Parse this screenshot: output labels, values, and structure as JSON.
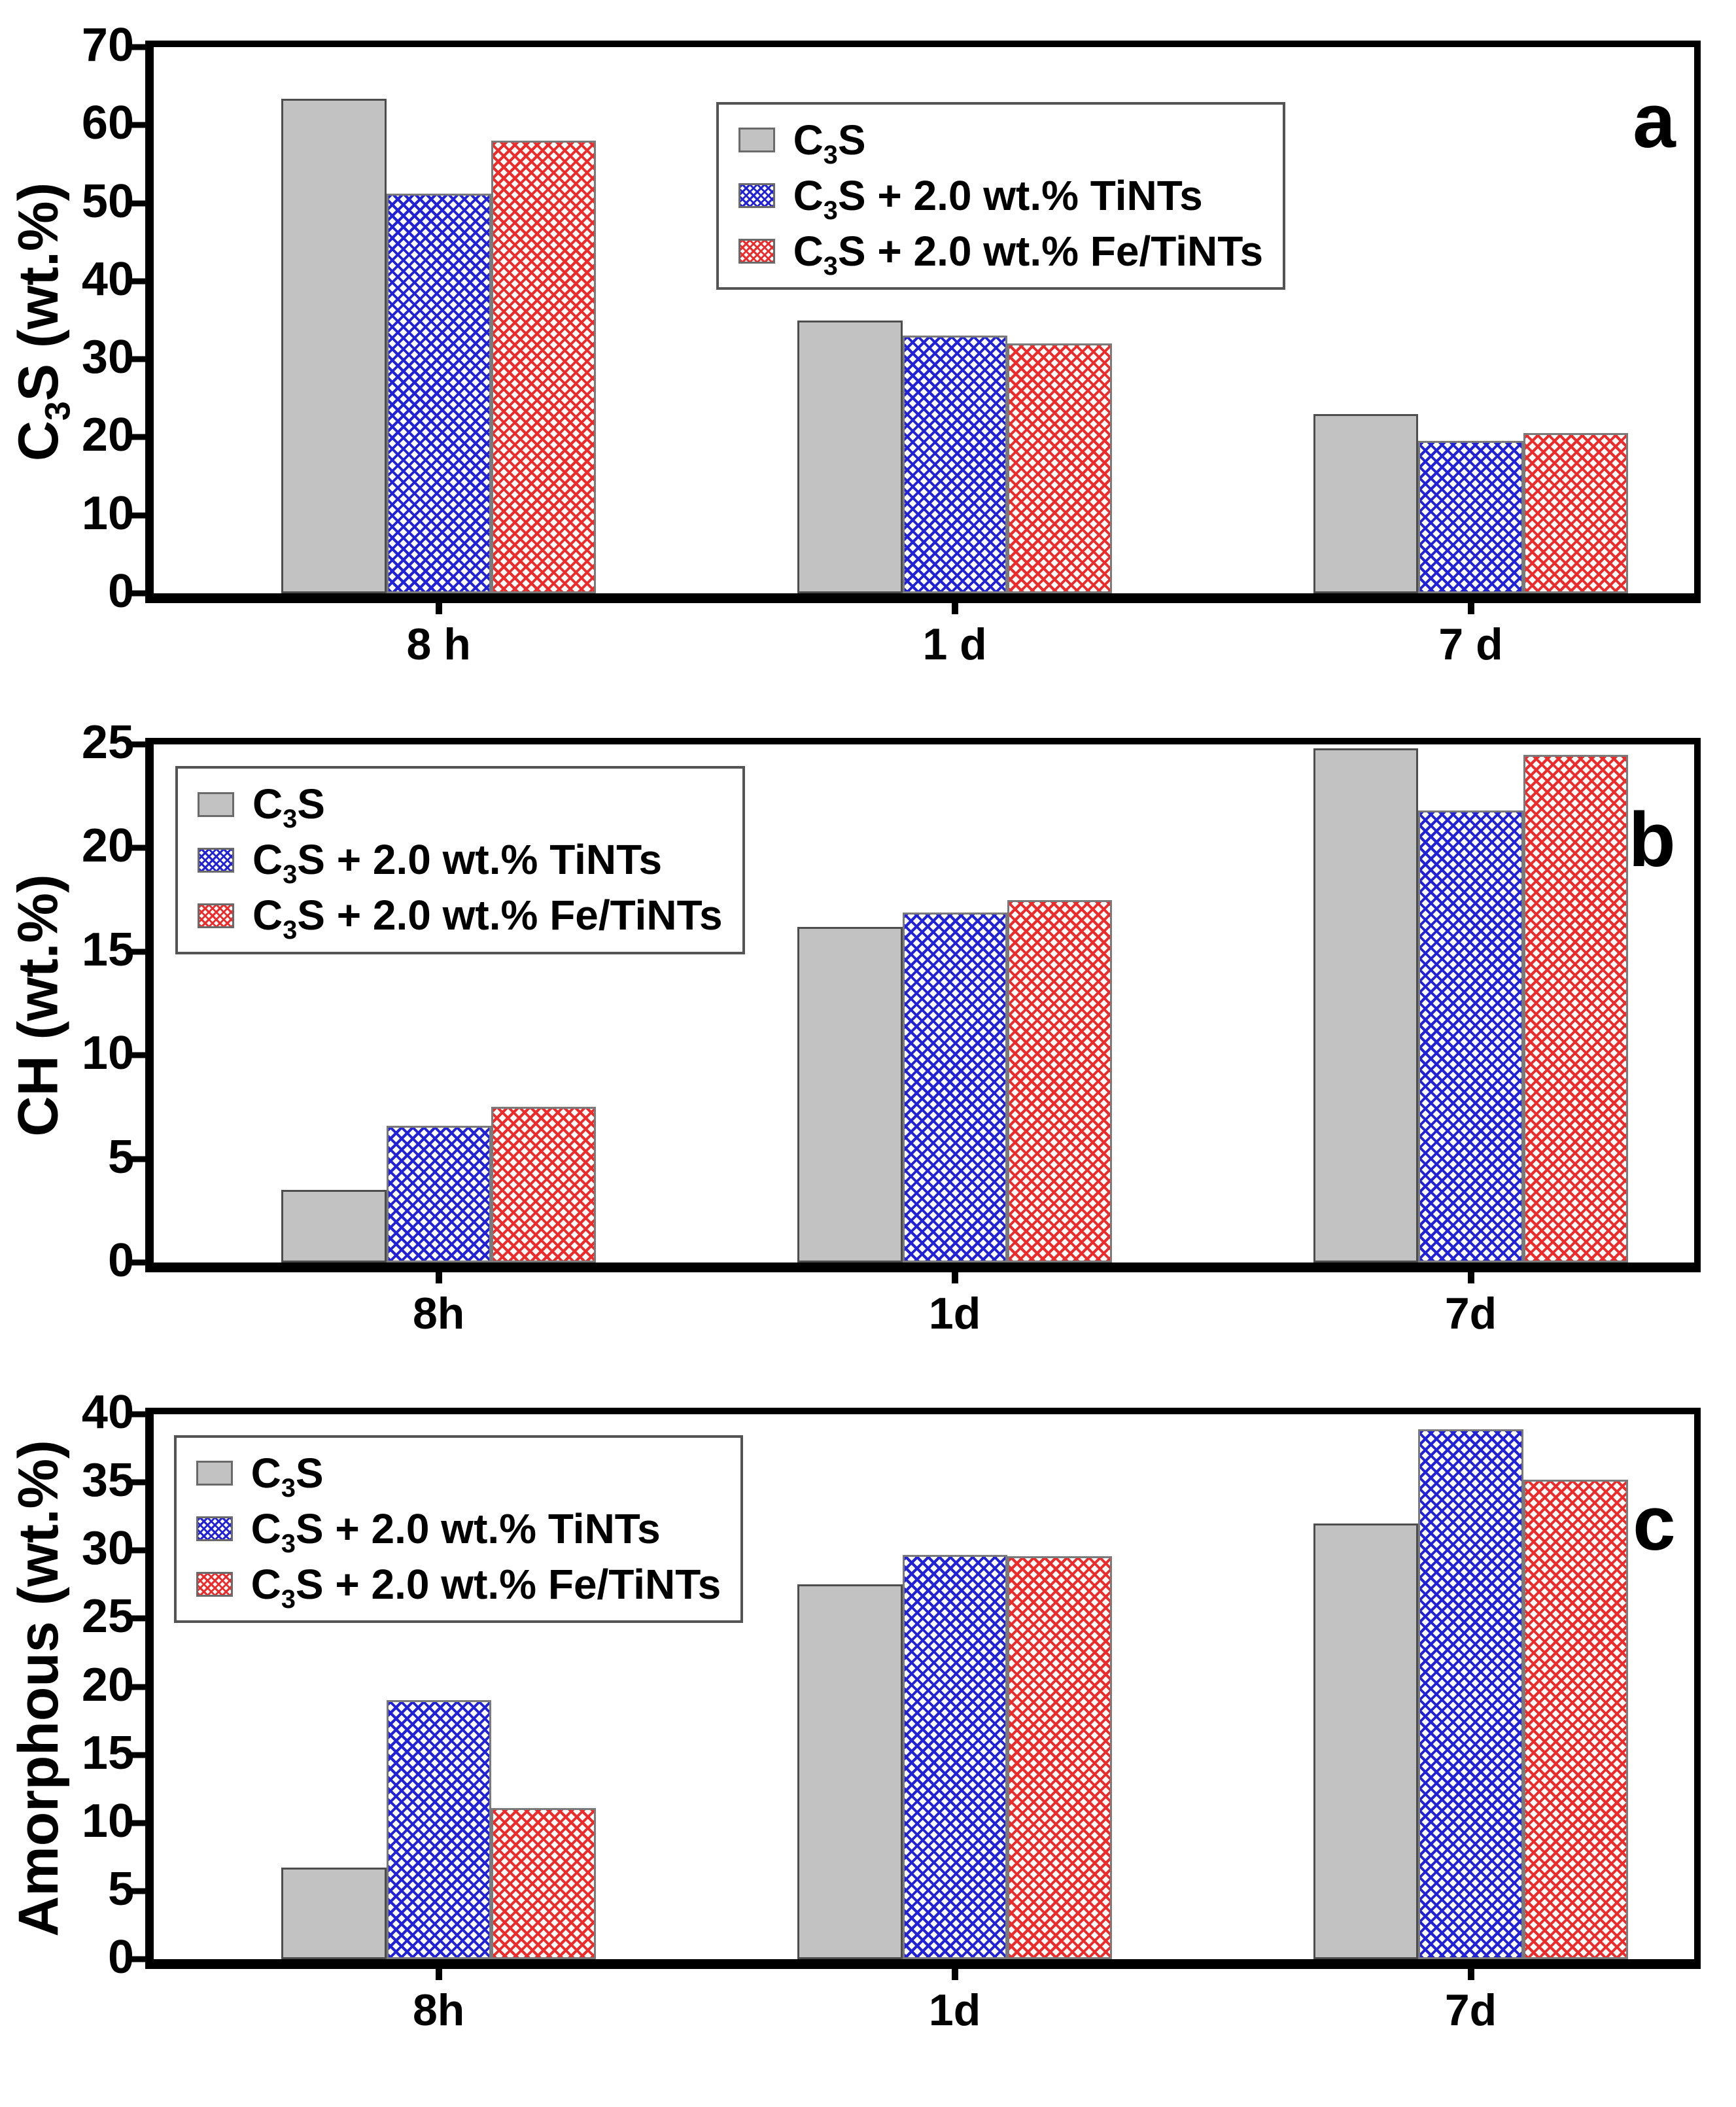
{
  "figure": {
    "background": "#ffffff",
    "panel_letters": [
      "a",
      "b",
      "c"
    ]
  },
  "colors": {
    "gray_fill": "#c2c2c2",
    "gray_edge": "#4d4d4d",
    "blue_hatch": "#2121d8",
    "red_hatch": "#ee2b2b",
    "frame": "#000000",
    "legend_border": "#545454"
  },
  "chart_data": [
    {
      "type": "bar",
      "panel_label": "a",
      "ylabel": "C3S (wt.%)",
      "xlabel": "",
      "ylim": [
        0,
        70
      ],
      "ytick_step": 10,
      "grid": false,
      "legend_position": "top-right",
      "categories": [
        "8 h",
        "1 d",
        "7 d"
      ],
      "series": [
        {
          "name": "C3S",
          "style": "gray-solid",
          "values": [
            63.4,
            35.0,
            23.0
          ]
        },
        {
          "name": "C3S + 2.0 wt.% TiNTs",
          "style": "blue-crosshatch",
          "values": [
            51.2,
            33.0,
            19.5
          ]
        },
        {
          "name": "C3S + 2.0 wt.% Fe/TiNTs",
          "style": "red-crosshatch",
          "values": [
            58.0,
            32.0,
            20.5
          ]
        }
      ]
    },
    {
      "type": "bar",
      "panel_label": "b",
      "ylabel": "CH (wt.%)",
      "xlabel": "",
      "ylim": [
        0,
        25
      ],
      "ytick_step": 5,
      "grid": false,
      "legend_position": "top-left",
      "categories": [
        "8h",
        "1d",
        "7d"
      ],
      "series": [
        {
          "name": "C3S",
          "style": "gray-solid",
          "values": [
            3.5,
            16.2,
            24.8
          ]
        },
        {
          "name": "C3S + 2.0 wt.% TiNTs",
          "style": "blue-crosshatch",
          "values": [
            6.6,
            16.9,
            21.8
          ]
        },
        {
          "name": "C3S + 2.0 wt.% Fe/TiNTs",
          "style": "red-crosshatch",
          "values": [
            7.5,
            17.5,
            24.5
          ]
        }
      ]
    },
    {
      "type": "bar",
      "panel_label": "c",
      "ylabel": "Amorphous (wt.%)",
      "xlabel": "",
      "ylim": [
        0,
        40
      ],
      "ytick_step": 5,
      "grid": false,
      "legend_position": "top-left",
      "categories": [
        "8h",
        "1d",
        "7d"
      ],
      "series": [
        {
          "name": "C3S",
          "style": "gray-solid",
          "values": [
            6.7,
            27.5,
            32.0
          ]
        },
        {
          "name": "C3S + 2.0 wt.% TiNTs",
          "style": "blue-crosshatch",
          "values": [
            19.0,
            29.7,
            38.9
          ]
        },
        {
          "name": "C3S + 2.0 wt.% Fe/TiNTs",
          "style": "red-crosshatch",
          "values": [
            11.1,
            29.6,
            35.2
          ]
        }
      ]
    }
  ]
}
